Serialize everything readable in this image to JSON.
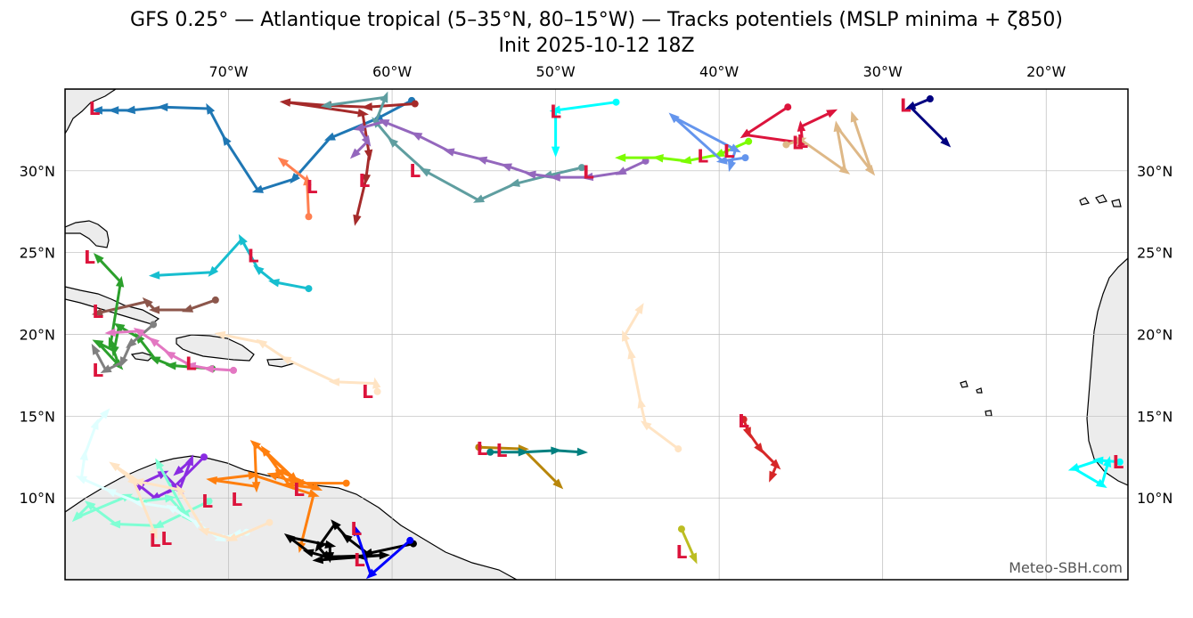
{
  "title": {
    "line1": "GFS 0.25° — Atlantique tropical (5–35°N, 80–15°W) — Tracks potentiels (MSLP minima + ζ850)",
    "line2": "Init 2025-10-12 18Z"
  },
  "credit": "Meteo-SBH.com",
  "low_marker": "L",
  "colors": {
    "frame": "#000000",
    "grid": "#bbbbbb",
    "land": "#ececec",
    "coast": "#000000",
    "low": "#dc143c"
  },
  "chart_data": {
    "type": "map-tracks",
    "extent": {
      "lon": [
        -80,
        -15
      ],
      "lat": [
        5,
        35
      ]
    },
    "lon_ticks": [
      {
        "value": -70,
        "label": "70°W"
      },
      {
        "value": -60,
        "label": "60°W"
      },
      {
        "value": -50,
        "label": "50°W"
      },
      {
        "value": -40,
        "label": "40°W"
      },
      {
        "value": -30,
        "label": "30°W"
      },
      {
        "value": -20,
        "label": "20°W"
      }
    ],
    "lat_ticks": [
      {
        "value": 30,
        "label": "30°N"
      },
      {
        "value": 25,
        "label": "25°N"
      },
      {
        "value": 20,
        "label": "20°N"
      },
      {
        "value": 15,
        "label": "15°N"
      },
      {
        "value": 10,
        "label": "10°N"
      }
    ],
    "tracks": [
      {
        "color": "#1f77b4",
        "points": [
          [
            -58.8,
            34.3
          ],
          [
            -60.9,
            33.2
          ],
          [
            -63.8,
            32.0
          ],
          [
            -66.0,
            29.5
          ],
          [
            -68.2,
            28.8
          ],
          [
            -70.2,
            31.9
          ],
          [
            -71.2,
            33.8
          ],
          [
            -74.0,
            33.9
          ],
          [
            -76.0,
            33.7
          ],
          [
            -77.0,
            33.7
          ],
          [
            -78.0,
            33.7
          ]
        ],
        "low": [
          -78.2,
          33.8
        ]
      },
      {
        "color": "#ff7f50",
        "points": [
          [
            -65.1,
            27.2
          ],
          [
            -65.2,
            29.4
          ],
          [
            -66.7,
            30.6
          ]
        ],
        "low": [
          -64.9,
          29.0
        ]
      },
      {
        "color": "#a52a2a",
        "points": [
          [
            -58.6,
            34.1
          ],
          [
            -61.5,
            33.9
          ],
          [
            -64.0,
            34.0
          ],
          [
            -66.5,
            34.2
          ],
          [
            -61.8,
            33.5
          ],
          [
            -61.4,
            31.0
          ],
          [
            -61.6,
            29.5
          ],
          [
            -62.2,
            27.0
          ]
        ],
        "low": [
          -61.7,
          29.4
        ]
      },
      {
        "color": "#5f9ea0",
        "points": [
          [
            -48.4,
            30.2
          ],
          [
            -50.5,
            29.7
          ],
          [
            -52.5,
            29.2
          ],
          [
            -54.7,
            28.2
          ],
          [
            -58.0,
            30.0
          ],
          [
            -60.0,
            31.8
          ],
          [
            -61.0,
            33.0
          ],
          [
            -60.4,
            34.5
          ],
          [
            -64.0,
            34.0
          ]
        ],
        "low": [
          -58.6,
          30.0
        ]
      },
      {
        "color": "#9467bd",
        "points": [
          [
            -44.5,
            30.6
          ],
          [
            -46.0,
            29.9
          ],
          [
            -48.0,
            29.6
          ],
          [
            -50.0,
            29.6
          ],
          [
            -51.5,
            29.8
          ],
          [
            -53.0,
            30.3
          ],
          [
            -54.5,
            30.7
          ],
          [
            -56.5,
            31.2
          ],
          [
            -58.5,
            32.2
          ],
          [
            -60.5,
            33.0
          ],
          [
            -62.0,
            32.6
          ],
          [
            -61.5,
            31.8
          ],
          [
            -62.3,
            31.0
          ]
        ],
        "low": [
          -48.0,
          29.9
        ]
      },
      {
        "color": "#00ffff",
        "points": [
          [
            -46.3,
            34.2
          ],
          [
            -50.0,
            33.7
          ],
          [
            -50.0,
            31.2
          ]
        ],
        "low": [
          -50.0,
          33.6
        ]
      },
      {
        "color": "#7cfc00",
        "points": [
          [
            -38.2,
            31.8
          ],
          [
            -40.0,
            31.0
          ],
          [
            -42.0,
            30.6
          ],
          [
            -43.7,
            30.8
          ],
          [
            -46.0,
            30.8
          ]
        ],
        "low": [
          -41.0,
          30.9
        ]
      },
      {
        "color": "#6495ed",
        "points": [
          [
            -38.4,
            30.8
          ],
          [
            -39.8,
            30.6
          ],
          [
            -42.8,
            33.3
          ],
          [
            -39.0,
            31.3
          ],
          [
            -39.3,
            30.3
          ]
        ],
        "low": [
          -39.4,
          31.2
        ]
      },
      {
        "color": "#dc143c",
        "points": [
          [
            -35.8,
            33.9
          ],
          [
            -38.4,
            32.2
          ],
          [
            -34.9,
            31.7
          ],
          [
            -35.0,
            32.7
          ],
          [
            -33.1,
            33.6
          ]
        ],
        "low": [
          -34.9,
          31.8
        ]
      },
      {
        "color": "#deb887",
        "points": [
          [
            -35.9,
            31.6
          ],
          [
            -35.0,
            31.9
          ],
          [
            -32.3,
            30.0
          ],
          [
            -32.8,
            32.7
          ],
          [
            -30.7,
            30.0
          ],
          [
            -31.8,
            33.3
          ]
        ],
        "low": [
          -35.2,
          31.7
        ]
      },
      {
        "color": "#000080",
        "points": [
          [
            -27.1,
            34.4
          ],
          [
            -28.3,
            33.9
          ],
          [
            -26.1,
            31.7
          ]
        ],
        "low": [
          -28.6,
          34.0
        ]
      },
      {
        "color": "#17becf",
        "points": [
          [
            -65.1,
            22.8
          ],
          [
            -67.2,
            23.2
          ],
          [
            -68.2,
            24.0
          ],
          [
            -69.2,
            25.8
          ],
          [
            -71.0,
            23.8
          ],
          [
            -74.5,
            23.6
          ]
        ],
        "low": [
          -68.5,
          24.8
        ]
      },
      {
        "color": "#8c564b",
        "points": [
          [
            -70.8,
            22.1
          ],
          [
            -72.5,
            21.5
          ],
          [
            -74.5,
            21.5
          ],
          [
            -75.0,
            22.0
          ],
          [
            -78.0,
            21.3
          ]
        ],
        "low": [
          -78.0,
          21.4
        ]
      },
      {
        "color": "#2ca02c",
        "points": [
          [
            -71.0,
            17.9
          ],
          [
            -73.5,
            18.1
          ],
          [
            -74.5,
            18.5
          ],
          [
            -75.5,
            19.8
          ],
          [
            -76.7,
            20.5
          ],
          [
            -77.0,
            19.0
          ],
          [
            -78.0,
            19.5
          ],
          [
            -76.7,
            18.1
          ],
          [
            -77.2,
            19.5
          ],
          [
            -76.6,
            23.2
          ],
          [
            -78.0,
            24.7
          ]
        ],
        "low": [
          -78.5,
          24.7
        ]
      },
      {
        "color": "#808080",
        "points": [
          [
            -74.6,
            20.6
          ],
          [
            -76.0,
            19.4
          ],
          [
            -76.5,
            18.3
          ],
          [
            -77.5,
            17.8
          ],
          [
            -78.2,
            19.1
          ]
        ],
        "low": [
          -78.0,
          17.8
        ]
      },
      {
        "color": "#e377c2",
        "points": [
          [
            -69.7,
            17.8
          ],
          [
            -71.2,
            17.9
          ],
          [
            -72.3,
            18.1
          ],
          [
            -73.6,
            18.8
          ],
          [
            -74.6,
            19.6
          ],
          [
            -75.5,
            20.2
          ],
          [
            -77.2,
            20.1
          ]
        ],
        "low": [
          -72.3,
          18.2
        ]
      },
      {
        "color": "#ffe4c4",
        "points": [
          [
            -60.9,
            16.5
          ],
          [
            -61.0,
            17.0
          ],
          [
            -63.5,
            17.1
          ],
          [
            -66.5,
            18.5
          ],
          [
            -68.0,
            19.5
          ],
          [
            -70.5,
            20.0
          ]
        ],
        "low": [
          -61.5,
          16.5
        ]
      },
      {
        "color": "#ffe4c4",
        "points": [
          [
            -42.5,
            13.0
          ],
          [
            -44.5,
            14.5
          ],
          [
            -44.8,
            15.8
          ],
          [
            -45.4,
            18.8
          ],
          [
            -45.8,
            19.9
          ],
          [
            -44.8,
            21.6
          ]
        ],
        "low": [
          -38.5,
          14.7
        ]
      },
      {
        "color": "#d62728",
        "points": [
          [
            -38.5,
            14.8
          ],
          [
            -38.2,
            14.0
          ],
          [
            -37.5,
            13.0
          ],
          [
            -36.5,
            12.0
          ],
          [
            -36.8,
            11.3
          ]
        ],
        "low": [
          -38.5,
          14.7
        ]
      },
      {
        "color": "#b8860b",
        "points": [
          [
            -54.7,
            13.1
          ],
          [
            -52.0,
            13.0
          ],
          [
            -49.8,
            10.8
          ]
        ],
        "low": [
          -54.5,
          13.0
        ]
      },
      {
        "color": "#008080",
        "points": [
          [
            -54.0,
            12.8
          ],
          [
            -52.0,
            12.8
          ],
          [
            -50.0,
            12.9
          ],
          [
            -48.4,
            12.8
          ]
        ],
        "low": [
          -53.3,
          12.9
        ]
      },
      {
        "color": "#bcbd22",
        "points": [
          [
            -42.3,
            8.1
          ],
          [
            -41.5,
            6.3
          ]
        ],
        "low": [
          -42.3,
          6.7
        ]
      },
      {
        "color": "#ff7f0e",
        "points": [
          [
            -62.8,
            10.9
          ],
          [
            -65.7,
            10.9
          ],
          [
            -67.3,
            11.4
          ],
          [
            -66.8,
            11.6
          ],
          [
            -64.6,
            10.6
          ],
          [
            -66.3,
            10.8
          ],
          [
            -67.8,
            12.9
          ],
          [
            -66.0,
            11.2
          ],
          [
            -68.4,
            13.3
          ],
          [
            -68.3,
            10.7
          ],
          [
            -71.0,
            11.1
          ],
          [
            -68.5,
            11.4
          ],
          [
            -64.8,
            10.2
          ],
          [
            -65.6,
            7.0
          ]
        ],
        "low": [
          -65.7,
          10.5
        ]
      },
      {
        "color": "#000000",
        "points": [
          [
            -58.7,
            7.2
          ],
          [
            -61.5,
            6.6
          ],
          [
            -62.8,
            7.6
          ],
          [
            -63.5,
            8.4
          ],
          [
            -64.5,
            7.0
          ],
          [
            -64.0,
            6.4
          ],
          [
            -65.1,
            6.7
          ],
          [
            -66.3,
            7.6
          ],
          [
            -63.8,
            7.1
          ],
          [
            -63.8,
            6.4
          ],
          [
            -60.5,
            6.5
          ],
          [
            -61.8,
            6.4
          ],
          [
            -64.5,
            6.2
          ]
        ],
        "low": [
          -62.2,
          8.1
        ]
      },
      {
        "color": "#0000ff",
        "points": [
          [
            -58.9,
            7.4
          ],
          [
            -61.3,
            5.3
          ],
          [
            -62.2,
            8.0
          ]
        ],
        "low": [
          -62.0,
          6.2
        ]
      },
      {
        "color": "#8a2be2",
        "points": [
          [
            -71.5,
            12.5
          ],
          [
            -73.5,
            10.5
          ],
          [
            -74.5,
            10.0
          ],
          [
            -75.5,
            10.8
          ],
          [
            -74.0,
            11.5
          ],
          [
            -73.0,
            10.5
          ],
          [
            -72.3,
            12.3
          ],
          [
            -73.1,
            11.6
          ]
        ],
        "low": [
          -71.3,
          9.8
        ]
      },
      {
        "color": "#7fffd4",
        "points": [
          [
            -71.2,
            9.8
          ],
          [
            -74.3,
            8.3
          ],
          [
            -76.9,
            8.4
          ],
          [
            -78.5,
            9.6
          ],
          [
            -79.3,
            8.8
          ],
          [
            -76.2,
            10.1
          ],
          [
            -75.3,
            9.8
          ],
          [
            -73.6,
            10.0
          ],
          [
            -72.5,
            8.8
          ],
          [
            -74.3,
            12.1
          ]
        ],
        "low": [
          -69.5,
          9.9
        ]
      },
      {
        "color": "#e0ffff",
        "points": [
          [
            -68.9,
            7.9
          ],
          [
            -69.5,
            7.8
          ],
          [
            -70.5,
            7.5
          ],
          [
            -72.0,
            8.5
          ],
          [
            -73.5,
            9.4
          ],
          [
            -75.5,
            9.7
          ],
          [
            -77.2,
            10.4
          ],
          [
            -79.0,
            11.2
          ],
          [
            -78.8,
            12.6
          ],
          [
            -78.1,
            14.5
          ],
          [
            -77.5,
            15.2
          ]
        ],
        "low": [
          -74.5,
          7.4
        ]
      },
      {
        "color": "#ffe4c4",
        "points": [
          [
            -67.5,
            8.5
          ],
          [
            -69.8,
            7.5
          ],
          [
            -71.5,
            8.0
          ],
          [
            -73.0,
            10.5
          ],
          [
            -75.5,
            11.0
          ],
          [
            -77.0,
            12.0
          ],
          [
            -75.8,
            11.0
          ],
          [
            -74.5,
            7.8
          ]
        ],
        "low": [
          -73.8,
          7.5
        ]
      },
      {
        "color": "#00ffff",
        "points": [
          [
            -15.5,
            12.2
          ],
          [
            -16.8,
            12.3
          ],
          [
            -18.3,
            11.8
          ],
          [
            -16.6,
            10.8
          ],
          [
            -16.2,
            12.2
          ]
        ],
        "low": [
          -15.6,
          12.2
        ]
      }
    ]
  }
}
